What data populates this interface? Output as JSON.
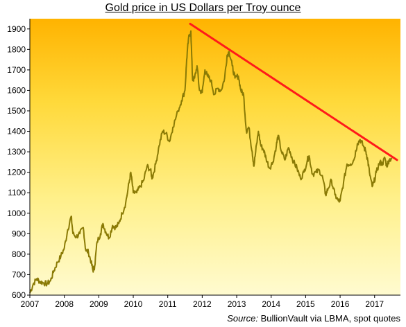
{
  "chart_data": {
    "type": "line",
    "title": "Gold price in US Dollars per Troy  ounce",
    "xlabel": "",
    "ylabel": "",
    "xlim": [
      2007.0,
      2017.75
    ],
    "ylim": [
      600,
      1950
    ],
    "x_ticks": [
      "2007",
      "2008",
      "2009",
      "2010",
      "2011",
      "2012",
      "2013",
      "2014",
      "2015",
      "2016",
      "2017"
    ],
    "y_ticks": [
      "600",
      "700",
      "800",
      "900",
      "1000",
      "1100",
      "1200",
      "1300",
      "1400",
      "1500",
      "1600",
      "1700",
      "1800",
      "1900"
    ],
    "grid": false,
    "background": "vertical gradient, pale yellow at bottom to orange at top",
    "series": [
      {
        "color": "#8a7a05",
        "points": [
          [
            2007.0,
            610
          ],
          [
            2007.1,
            655
          ],
          [
            2007.2,
            680
          ],
          [
            2007.3,
            665
          ],
          [
            2007.4,
            660
          ],
          [
            2007.5,
            655
          ],
          [
            2007.6,
            670
          ],
          [
            2007.7,
            720
          ],
          [
            2007.8,
            760
          ],
          [
            2007.9,
            790
          ],
          [
            2008.0,
            830
          ],
          [
            2008.1,
            920
          ],
          [
            2008.2,
            985
          ],
          [
            2008.25,
            900
          ],
          [
            2008.35,
            885
          ],
          [
            2008.45,
            900
          ],
          [
            2008.55,
            930
          ],
          [
            2008.62,
            820
          ],
          [
            2008.7,
            810
          ],
          [
            2008.78,
            760
          ],
          [
            2008.83,
            720
          ],
          [
            2008.88,
            740
          ],
          [
            2008.95,
            860
          ],
          [
            2009.05,
            900
          ],
          [
            2009.12,
            950
          ],
          [
            2009.2,
            910
          ],
          [
            2009.3,
            880
          ],
          [
            2009.4,
            940
          ],
          [
            2009.5,
            930
          ],
          [
            2009.58,
            950
          ],
          [
            2009.68,
            1000
          ],
          [
            2009.78,
            1050
          ],
          [
            2009.88,
            1150
          ],
          [
            2009.93,
            1200
          ],
          [
            2010.0,
            1100
          ],
          [
            2010.1,
            1100
          ],
          [
            2010.2,
            1130
          ],
          [
            2010.3,
            1160
          ],
          [
            2010.4,
            1230
          ],
          [
            2010.5,
            1210
          ],
          [
            2010.55,
            1170
          ],
          [
            2010.65,
            1240
          ],
          [
            2010.75,
            1330
          ],
          [
            2010.85,
            1400
          ],
          [
            2010.95,
            1390
          ],
          [
            2011.05,
            1350
          ],
          [
            2011.15,
            1420
          ],
          [
            2011.3,
            1500
          ],
          [
            2011.4,
            1550
          ],
          [
            2011.5,
            1600
          ],
          [
            2011.55,
            1750
          ],
          [
            2011.6,
            1850
          ],
          [
            2011.67,
            1890
          ],
          [
            2011.72,
            1650
          ],
          [
            2011.78,
            1660
          ],
          [
            2011.85,
            1720
          ],
          [
            2011.92,
            1600
          ],
          [
            2012.0,
            1590
          ],
          [
            2012.08,
            1700
          ],
          [
            2012.15,
            1670
          ],
          [
            2012.25,
            1650
          ],
          [
            2012.35,
            1580
          ],
          [
            2012.45,
            1610
          ],
          [
            2012.55,
            1600
          ],
          [
            2012.65,
            1660
          ],
          [
            2012.72,
            1770
          ],
          [
            2012.78,
            1790
          ],
          [
            2012.87,
            1720
          ],
          [
            2012.95,
            1660
          ],
          [
            2013.05,
            1670
          ],
          [
            2013.12,
            1600
          ],
          [
            2013.2,
            1580
          ],
          [
            2013.28,
            1400
          ],
          [
            2013.35,
            1420
          ],
          [
            2013.45,
            1300
          ],
          [
            2013.5,
            1230
          ],
          [
            2013.55,
            1300
          ],
          [
            2013.63,
            1400
          ],
          [
            2013.7,
            1330
          ],
          [
            2013.78,
            1310
          ],
          [
            2013.85,
            1270
          ],
          [
            2013.95,
            1220
          ],
          [
            2014.05,
            1250
          ],
          [
            2014.15,
            1330
          ],
          [
            2014.2,
            1380
          ],
          [
            2014.3,
            1300
          ],
          [
            2014.4,
            1260
          ],
          [
            2014.5,
            1320
          ],
          [
            2014.55,
            1300
          ],
          [
            2014.65,
            1250
          ],
          [
            2014.75,
            1220
          ],
          [
            2014.85,
            1170
          ],
          [
            2014.95,
            1200
          ],
          [
            2015.05,
            1260
          ],
          [
            2015.1,
            1280
          ],
          [
            2015.2,
            1190
          ],
          [
            2015.3,
            1200
          ],
          [
            2015.4,
            1210
          ],
          [
            2015.5,
            1170
          ],
          [
            2015.58,
            1090
          ],
          [
            2015.65,
            1120
          ],
          [
            2015.75,
            1160
          ],
          [
            2015.85,
            1090
          ],
          [
            2015.95,
            1060
          ],
          [
            2016.0,
            1060
          ],
          [
            2016.1,
            1150
          ],
          [
            2016.2,
            1240
          ],
          [
            2016.3,
            1240
          ],
          [
            2016.4,
            1260
          ],
          [
            2016.5,
            1340
          ],
          [
            2016.58,
            1360
          ],
          [
            2016.67,
            1330
          ],
          [
            2016.75,
            1300
          ],
          [
            2016.8,
            1260
          ],
          [
            2016.85,
            1200
          ],
          [
            2016.93,
            1130
          ],
          [
            2016.98,
            1150
          ],
          [
            2017.05,
            1200
          ],
          [
            2017.15,
            1250
          ],
          [
            2017.22,
            1240
          ],
          [
            2017.3,
            1270
          ],
          [
            2017.35,
            1230
          ],
          [
            2017.42,
            1260
          ],
          [
            2017.5,
            1270
          ]
        ]
      }
    ],
    "annotations": [
      {
        "type": "trend-line",
        "color": "#ff1a1a",
        "from": [
          2011.65,
          1925
        ],
        "to": [
          2017.65,
          1260
        ]
      }
    ],
    "source_label": "Source:",
    "source_text": "BullionVault via  LBMA, spot quotes"
  }
}
